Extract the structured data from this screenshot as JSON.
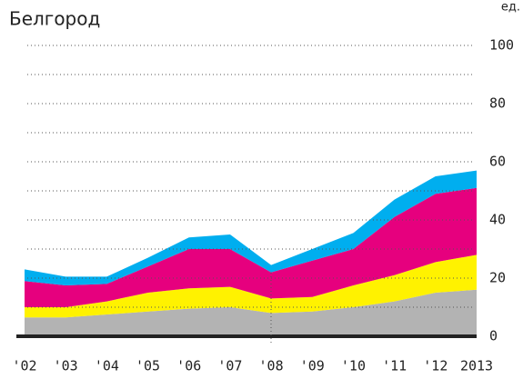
{
  "chart_data": {
    "type": "stacked_area",
    "title": "Белгород",
    "unit": "ед.",
    "categories": [
      "'02",
      "'03",
      "'04",
      "'05",
      "'06",
      "'07",
      "'08",
      "'09",
      "'10",
      "'11",
      "'12",
      "2013"
    ],
    "series": [
      {
        "color": "#b3b3b3",
        "values": [
          6.5,
          6.5,
          7.5,
          8.5,
          9.5,
          10,
          8,
          8.5,
          10,
          12,
          15,
          16
        ]
      },
      {
        "color": "#fff200",
        "values": [
          3.5,
          3.5,
          4.5,
          6.5,
          7,
          7,
          5,
          5,
          7.5,
          9,
          10.5,
          12
        ]
      },
      {
        "color": "#e6007e",
        "values": [
          9,
          7.5,
          6,
          9,
          13.5,
          13,
          9,
          12.5,
          12.5,
          20,
          23.5,
          23
        ]
      },
      {
        "color": "#00aeef",
        "values": [
          4,
          3,
          2.5,
          3,
          4,
          5,
          2.5,
          4,
          5.5,
          6,
          6,
          6
        ]
      }
    ],
    "ylim": [
      0,
      100
    ],
    "yticks": [
      0,
      20,
      40,
      60,
      80,
      100
    ],
    "grid": true
  }
}
